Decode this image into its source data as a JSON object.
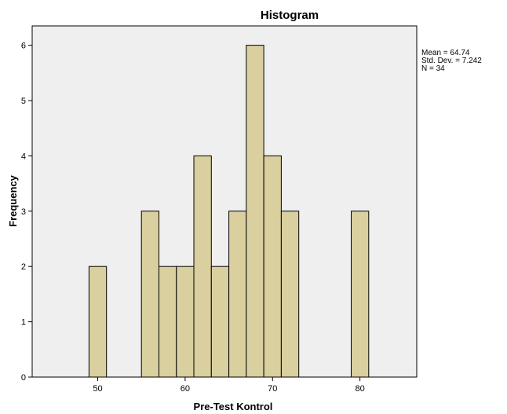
{
  "chart_data": {
    "type": "bar",
    "title": "Histogram",
    "xlabel": "Pre-Test Kontrol",
    "ylabel": "Frequency",
    "xlim": [
      42.5,
      86.5
    ],
    "ylim": [
      0,
      6.35
    ],
    "xticks": [
      50,
      60,
      70,
      80
    ],
    "yticks": [
      0,
      1,
      2,
      3,
      4,
      5,
      6
    ],
    "bin_width": 2,
    "bins": [
      {
        "start": 49,
        "end": 51,
        "count": 2
      },
      {
        "start": 55,
        "end": 57,
        "count": 3
      },
      {
        "start": 57,
        "end": 59,
        "count": 2
      },
      {
        "start": 59,
        "end": 61,
        "count": 2
      },
      {
        "start": 61,
        "end": 63,
        "count": 4
      },
      {
        "start": 63,
        "end": 65,
        "count": 2
      },
      {
        "start": 65,
        "end": 67,
        "count": 3
      },
      {
        "start": 67,
        "end": 69,
        "count": 6
      },
      {
        "start": 69,
        "end": 71,
        "count": 4
      },
      {
        "start": 71,
        "end": 73,
        "count": 3
      },
      {
        "start": 79,
        "end": 81,
        "count": 3
      }
    ],
    "stats": [
      "Mean = 64.74",
      "Std. Dev. = 7.242",
      "N = 34"
    ],
    "grid": false,
    "colors": {
      "bar_fill": "#d9cf9f",
      "plot_background": "#efefef",
      "frame": "#000000"
    }
  }
}
